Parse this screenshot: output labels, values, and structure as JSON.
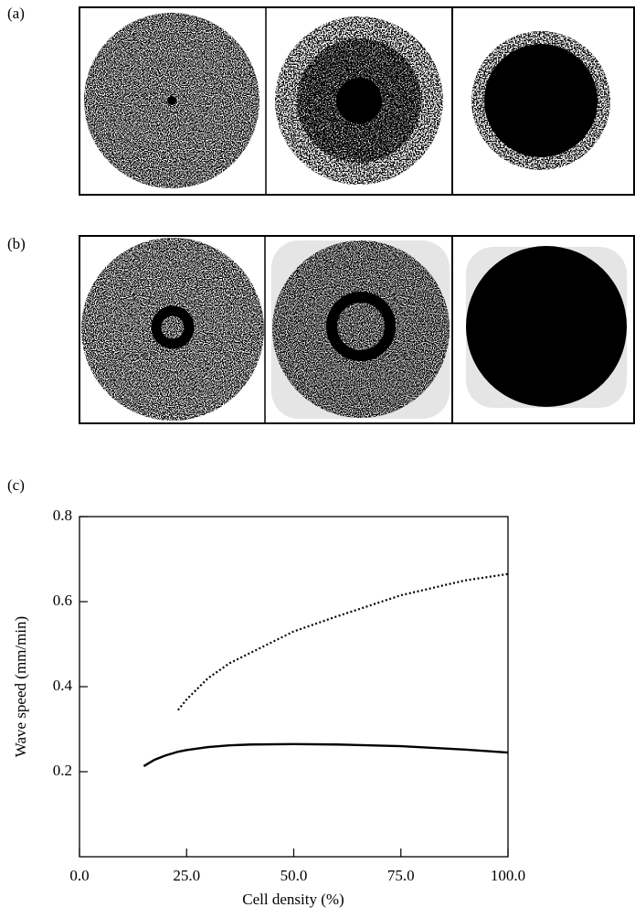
{
  "panel_labels": [
    "(a)",
    "(b)",
    "(c)"
  ],
  "chart_data": {
    "type": "line",
    "xlabel": "Cell density (%)",
    "ylabel": "Wave speed (mm/min)",
    "x": [
      15,
      17.5,
      20,
      23,
      25,
      30,
      35,
      40,
      50,
      60,
      75,
      90,
      100
    ],
    "series": [
      {
        "color": "#000000",
        "style": "solid",
        "values": [
          0.213,
          0.228,
          0.238,
          0.247,
          0.251,
          0.258,
          0.262,
          0.264,
          0.265,
          0.264,
          0.26,
          0.252,
          0.245
        ]
      },
      {
        "color": "#000000",
        "style": "dotted",
        "values": [
          null,
          null,
          null,
          0.345,
          0.37,
          0.42,
          0.455,
          0.48,
          0.53,
          0.565,
          0.615,
          0.65,
          0.665
        ]
      }
    ],
    "xlim": [
      0,
      100
    ],
    "xticks": [
      {
        "value": 0,
        "label": "0.0"
      },
      {
        "value": 25,
        "label": "25.0"
      },
      {
        "value": 50,
        "label": "50.0"
      },
      {
        "value": 75,
        "label": "75.0"
      },
      {
        "value": 100,
        "label": "100.0"
      }
    ],
    "ylim": [
      0,
      0.8
    ],
    "yticks": [
      0.2,
      0.4,
      0.6,
      0.8
    ],
    "grid": false
  }
}
